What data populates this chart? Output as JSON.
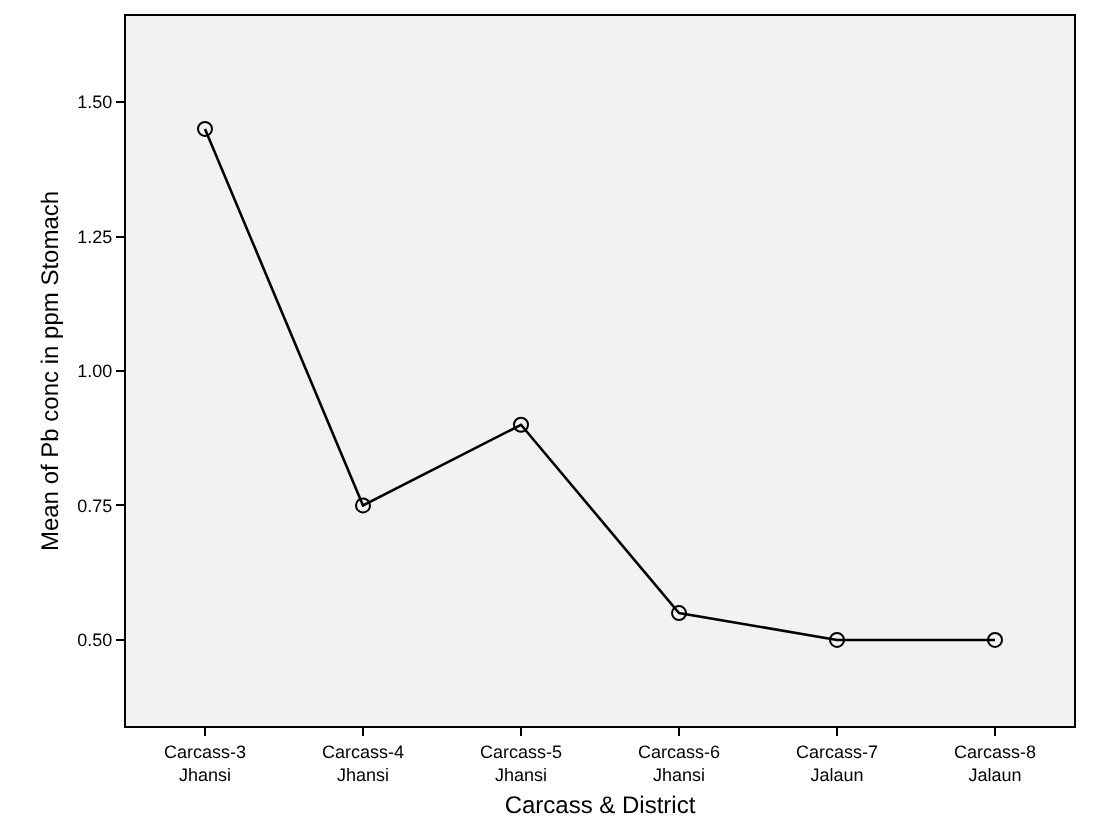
{
  "chart_data": {
    "type": "line",
    "xlabel": "Carcass & District",
    "ylabel": "Mean of Pb conc in ppm Stomach",
    "categories": [
      "Carcass-3\nJhansi",
      "Carcass-4\nJhansi",
      "Carcass-5\nJhansi",
      "Carcass-6\nJhansi",
      "Carcass-7\nJalaun",
      "Carcass-8\nJalaun"
    ],
    "series": [
      {
        "color": "#000000",
        "values": [
          1.45,
          0.75,
          0.9,
          0.55,
          0.5,
          0.5
        ]
      }
    ],
    "ylim": [
      0.34,
      1.66
    ],
    "yticks": [
      {
        "value": 0.5,
        "label": "0.50"
      },
      {
        "value": 0.75,
        "label": "0.75"
      },
      {
        "value": 1.0,
        "label": "1.00"
      },
      {
        "value": 1.25,
        "label": "1.25"
      },
      {
        "value": 1.5,
        "label": "1.50"
      }
    ],
    "marker": "circle",
    "line_style": "solid",
    "grid": false,
    "legend": false
  }
}
